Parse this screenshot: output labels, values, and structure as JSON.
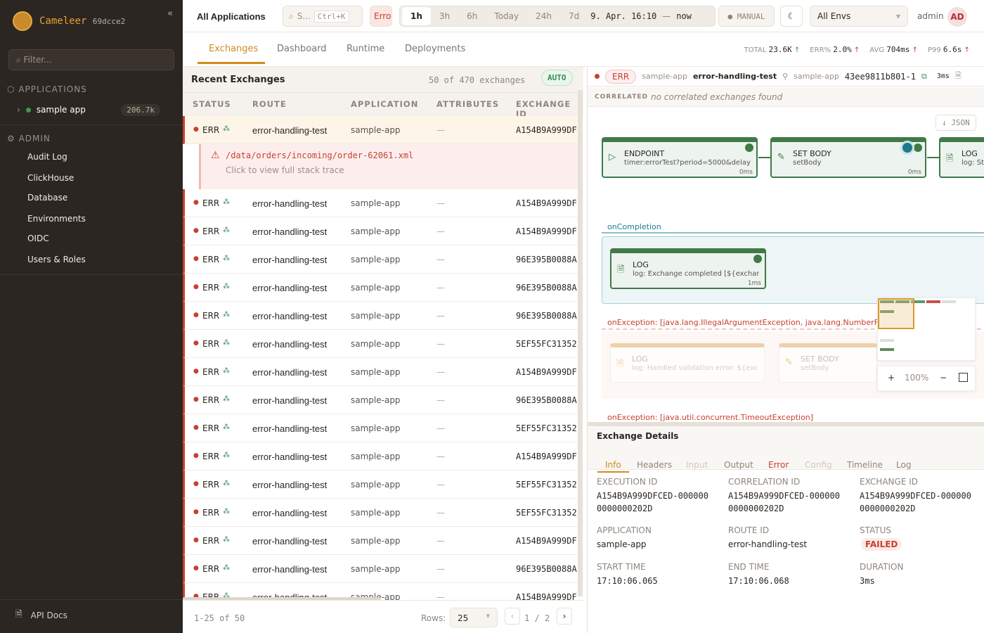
{
  "sidebar": {
    "brand": "Cameleer",
    "version": "69dcce2",
    "collapse": "«",
    "filter_placeholder": "Filter...",
    "applications_label": "APPLICATIONS",
    "apps": [
      {
        "name": "sample app",
        "count": "206.7k",
        "status_color": "#3c9a55"
      }
    ],
    "admin_label": "ADMIN",
    "admin_items": [
      "Audit Log",
      "ClickHouse",
      "Database",
      "Environments",
      "OIDC",
      "Users & Roles"
    ],
    "api_docs": "API Docs"
  },
  "topbar": {
    "scope": "All Applications",
    "search_placeholder": "S...",
    "search_shortcut": "Ctrl+K",
    "error_filter": "Erro",
    "time_ranges": [
      "1h",
      "3h",
      "6h",
      "Today",
      "24h",
      "7d"
    ],
    "active_range": "1h",
    "range_start": "9. Apr. 16:10",
    "range_sep": "—",
    "range_end": "now",
    "refresh_mode": "● MANUAL",
    "theme_icon": "moon-icon",
    "env": "All Envs",
    "user": "admin",
    "avatar": "AD"
  },
  "nav": {
    "tabs": [
      "Exchanges",
      "Dashboard",
      "Runtime",
      "Deployments"
    ],
    "active": "Exchanges"
  },
  "kpis": [
    {
      "label": "TOTAL",
      "value": "23.6K",
      "trend": "↑"
    },
    {
      "label": "ERR%",
      "value": "2.0%",
      "trend": "↑"
    },
    {
      "label": "AVG",
      "value": "704ms",
      "trend": "↑"
    },
    {
      "label": "P99",
      "value": "6.6s",
      "trend": "↑"
    }
  ],
  "exchanges": {
    "title": "Recent Exchanges",
    "count_text": "50 of 470 exchanges",
    "mode": "AUTO",
    "columns": [
      "STATUS",
      "ROUTE",
      "APPLICATION",
      "ATTRIBUTES",
      "EXCHANGE ID"
    ],
    "rows": [
      {
        "status": "ERR",
        "route": "error-handling-test",
        "app": "sample-app",
        "attrs": "—",
        "id": "A154B9A999DF"
      },
      {
        "status": "ERR",
        "route": "error-handling-test",
        "app": "sample-app",
        "attrs": "—",
        "id": "A154B9A999DF"
      },
      {
        "status": "ERR",
        "route": "error-handling-test",
        "app": "sample-app",
        "attrs": "—",
        "id": "A154B9A999DF"
      },
      {
        "status": "ERR",
        "route": "error-handling-test",
        "app": "sample-app",
        "attrs": "—",
        "id": "96E395B0088A"
      },
      {
        "status": "ERR",
        "route": "error-handling-test",
        "app": "sample-app",
        "attrs": "—",
        "id": "96E395B0088A"
      },
      {
        "status": "ERR",
        "route": "error-handling-test",
        "app": "sample-app",
        "attrs": "—",
        "id": "96E395B0088A"
      },
      {
        "status": "ERR",
        "route": "error-handling-test",
        "app": "sample-app",
        "attrs": "—",
        "id": "5EF55FC31352"
      },
      {
        "status": "ERR",
        "route": "error-handling-test",
        "app": "sample-app",
        "attrs": "—",
        "id": "A154B9A999DF"
      },
      {
        "status": "ERR",
        "route": "error-handling-test",
        "app": "sample-app",
        "attrs": "—",
        "id": "96E395B0088A"
      },
      {
        "status": "ERR",
        "route": "error-handling-test",
        "app": "sample-app",
        "attrs": "—",
        "id": "5EF55FC31352"
      },
      {
        "status": "ERR",
        "route": "error-handling-test",
        "app": "sample-app",
        "attrs": "—",
        "id": "A154B9A999DF"
      },
      {
        "status": "ERR",
        "route": "error-handling-test",
        "app": "sample-app",
        "attrs": "—",
        "id": "5EF55FC31352"
      },
      {
        "status": "ERR",
        "route": "error-handling-test",
        "app": "sample-app",
        "attrs": "—",
        "id": "5EF55FC31352"
      },
      {
        "status": "ERR",
        "route": "error-handling-test",
        "app": "sample-app",
        "attrs": "—",
        "id": "A154B9A999DF"
      },
      {
        "status": "ERR",
        "route": "error-handling-test",
        "app": "sample-app",
        "attrs": "—",
        "id": "96E395B0088A"
      },
      {
        "status": "ERR",
        "route": "error-handling-test",
        "app": "sample-app",
        "attrs": "—",
        "id": "A154B9A999DF"
      }
    ],
    "error": {
      "message": "/data/orders/incoming/order-62061.xml",
      "hint": "Click to view full stack trace"
    },
    "footer": {
      "range": "1-25 of 50",
      "rows_label": "Rows:",
      "rows_value": "25",
      "page": "1 / 2",
      "prev": "‹",
      "next": "›"
    }
  },
  "detail": {
    "status": "ERR",
    "app": "sample-app",
    "route": "error-handling-test",
    "app2": "sample-app",
    "exchange": "43ee9811b801-1",
    "duration": "3ms",
    "correlated_label": "CORRELATED",
    "correlated_text": "no correlated exchanges found",
    "json_btn": "↓ JSON",
    "nodes": [
      {
        "type": "ENDPOINT",
        "desc": "timer:errorTest?period=5000&delay",
        "ms": "0ms"
      },
      {
        "type": "SET BODY",
        "desc": "setBody",
        "ms": "0ms"
      },
      {
        "type": "LOG",
        "desc": "log: Sta"
      }
    ],
    "on_completion": {
      "label": "onCompletion",
      "node": {
        "type": "LOG",
        "desc": "log: Exchange completed [${exchan",
        "ms": "1ms"
      }
    },
    "on_exception1": {
      "label": "onException: [java.lang.IllegalArgumentException, java.lang.NumberForm",
      "nodes": [
        {
          "type": "LOG",
          "desc": "log: Handled validation error: ${exce"
        },
        {
          "type": "SET BODY",
          "desc": "setBody"
        }
      ]
    },
    "on_exception2": {
      "label": "onException: [java.util.concurrent.TimeoutException]"
    },
    "zoom": {
      "in": "+",
      "level": "100%",
      "out": "−"
    }
  },
  "details": {
    "title": "Exchange Details",
    "tabs": [
      "Info",
      "Headers",
      "Input",
      "Output",
      "Error",
      "Config",
      "Timeline",
      "Log"
    ],
    "active": "Info",
    "fields": [
      {
        "label": "EXECUTION ID",
        "value": "A154B9A999DFCED-000000 0000000202D"
      },
      {
        "label": "CORRELATION ID",
        "value": "A154B9A999DFCED-000000 0000000202D"
      },
      {
        "label": "EXCHANGE ID",
        "value": "A154B9A999DFCED-000000 0000000202D"
      },
      {
        "label": "APPLICATION",
        "value": "sample-app"
      },
      {
        "label": "ROUTE ID",
        "value": "error-handling-test"
      },
      {
        "label": "STATUS",
        "value": "FAILED"
      },
      {
        "label": "START TIME",
        "value": "17:10:06.065"
      },
      {
        "label": "END TIME",
        "value": "17:10:06.068"
      },
      {
        "label": "DURATION",
        "value": "3ms"
      }
    ]
  },
  "colors": {
    "accent": "#d08a1e",
    "error": "#c8402f",
    "success": "#3f7a47",
    "sidebar": "#2b2622"
  }
}
